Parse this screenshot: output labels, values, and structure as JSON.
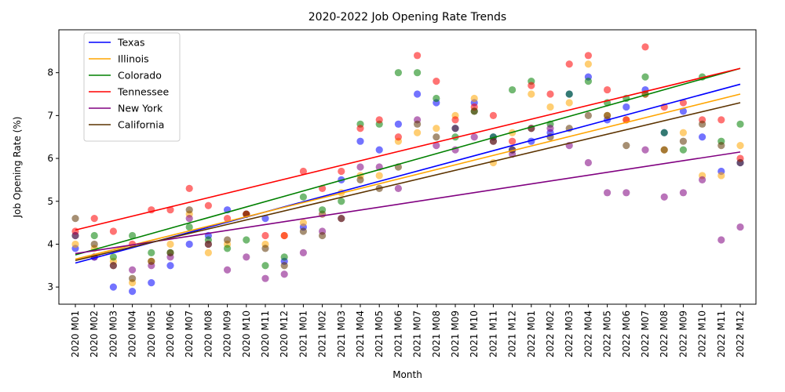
{
  "chart_data": {
    "type": "scatter",
    "title": "2020-2022 Job Opening Rate Trends",
    "xlabel": "Month",
    "ylabel": "Job Opening Rate (%)",
    "ylim": [
      2.6,
      9.0
    ],
    "yticks": [
      3,
      4,
      5,
      6,
      7,
      8
    ],
    "grid": false,
    "legend_position": "top-left",
    "categories": [
      "2020 M01",
      "2020 M02",
      "2020 M03",
      "2020 M04",
      "2020 M05",
      "2020 M06",
      "2020 M07",
      "2020 M08",
      "2020 M09",
      "2020 M10",
      "2020 M11",
      "2020 M12",
      "2021 M01",
      "2021 M02",
      "2021 M03",
      "2021 M04",
      "2021 M05",
      "2021 M06",
      "2021 M07",
      "2021 M08",
      "2021 M09",
      "2021 M10",
      "2021 M11",
      "2021 M12",
      "2022 M01",
      "2022 M02",
      "2022 M03",
      "2022 M04",
      "2022 M05",
      "2022 M06",
      "2022 M07",
      "2022 M08",
      "2022 M09",
      "2022 M10",
      "2022 M11",
      "2022 M12"
    ],
    "series": [
      {
        "name": "Texas",
        "color": "#0000ff",
        "values": [
          3.9,
          3.7,
          3.0,
          2.9,
          3.1,
          3.5,
          4.0,
          4.2,
          4.8,
          4.7,
          4.6,
          3.6,
          4.4,
          4.7,
          5.5,
          6.4,
          6.2,
          6.8,
          7.5,
          7.3,
          6.7,
          7.3,
          6.5,
          6.2,
          6.4,
          6.6,
          7.5,
          7.9,
          6.9,
          7.2,
          7.6,
          6.6,
          7.1,
          6.5,
          5.7,
          5.9
        ],
        "trend": [
          3.56,
          7.73
        ]
      },
      {
        "name": "Illinois",
        "color": "#ffa500",
        "values": [
          4.0,
          3.9,
          3.6,
          3.1,
          3.6,
          4.0,
          4.7,
          3.8,
          4.0,
          4.7,
          4.0,
          4.2,
          4.5,
          4.7,
          5.2,
          5.6,
          5.6,
          6.4,
          6.6,
          6.7,
          7.0,
          7.4,
          5.9,
          6.6,
          7.5,
          7.2,
          7.3,
          8.2,
          7.0,
          6.9,
          7.5,
          6.2,
          6.6,
          5.6,
          5.6,
          6.3
        ],
        "trend": [
          3.65,
          7.5
        ]
      },
      {
        "name": "Colorado",
        "color": "#008000",
        "values": [
          4.2,
          4.2,
          3.7,
          4.2,
          3.8,
          3.8,
          4.4,
          4.1,
          3.9,
          4.1,
          3.5,
          3.7,
          5.1,
          4.8,
          5.0,
          6.8,
          6.8,
          8.0,
          8.0,
          7.4,
          6.5,
          7.1,
          6.5,
          7.6,
          7.8,
          6.8,
          7.5,
          7.8,
          7.3,
          7.4,
          7.9,
          6.6,
          6.2,
          7.9,
          6.4,
          6.8
        ],
        "trend": [
          3.75,
          8.1
        ]
      },
      {
        "name": "Tennessee",
        "color": "#ff0000",
        "values": [
          4.3,
          4.6,
          4.3,
          4.0,
          4.8,
          4.8,
          5.3,
          4.9,
          4.6,
          4.7,
          4.2,
          4.2,
          5.7,
          5.3,
          5.7,
          6.7,
          6.9,
          6.5,
          8.4,
          7.8,
          6.9,
          7.2,
          7.0,
          6.4,
          7.7,
          7.5,
          8.2,
          8.4,
          7.6,
          6.9,
          8.6,
          7.2,
          7.3,
          6.9,
          6.9,
          6.0
        ],
        "trend": [
          4.33,
          8.1
        ]
      },
      {
        "name": "New York",
        "color": "#800080",
        "values": [
          4.2,
          3.7,
          3.5,
          3.4,
          3.5,
          3.7,
          4.6,
          4.0,
          3.4,
          3.7,
          3.2,
          3.3,
          3.8,
          4.3,
          4.6,
          5.8,
          5.8,
          5.3,
          6.9,
          6.3,
          6.2,
          6.5,
          6.4,
          6.1,
          6.7,
          6.7,
          6.3,
          5.9,
          5.2,
          5.2,
          6.2,
          5.1,
          5.2,
          5.5,
          4.1,
          4.4
        ],
        "trend": [
          3.78,
          6.15
        ]
      },
      {
        "name": "California",
        "color": "#5c3300",
        "values": [
          4.6,
          4.0,
          3.5,
          3.2,
          3.6,
          3.8,
          4.8,
          4.0,
          4.1,
          4.7,
          3.9,
          3.5,
          4.3,
          4.2,
          4.6,
          5.5,
          5.3,
          5.8,
          6.8,
          6.5,
          6.7,
          7.1,
          6.4,
          6.2,
          6.7,
          6.5,
          6.7,
          7.0,
          7.0,
          6.3,
          7.5,
          6.2,
          6.4,
          6.8,
          6.3,
          5.9
        ],
        "trend": [
          3.62,
          7.3
        ]
      }
    ]
  }
}
